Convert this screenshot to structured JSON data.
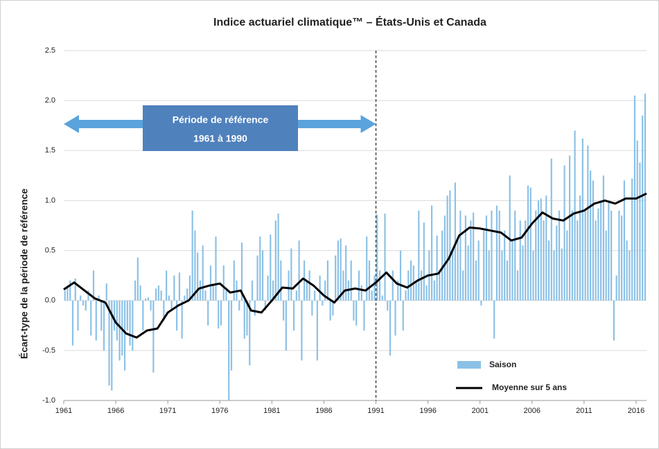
{
  "chart_data": {
    "type": "bar_line",
    "title": "Indice actuariel climatique™ – États-Unis et Canada",
    "y_label": "Écart-type de la période de référence",
    "annotation": {
      "text": [
        "Période de référence",
        "1961 à 1990"
      ],
      "from": 1961,
      "to": 1991
    },
    "reference_line": 1991,
    "xlim": [
      1961,
      2017
    ],
    "xticks": [
      1961,
      1966,
      1971,
      1976,
      1981,
      1986,
      1991,
      1996,
      2001,
      2006,
      2011,
      2016
    ],
    "ylim": [
      -1.0,
      2.5
    ],
    "yticks": [
      2.5,
      {
        "value": 2,
        "label": "2.0"
      },
      1.5,
      {
        "value": 1,
        "label": "1.0"
      },
      0.5,
      {
        "value": 0,
        "label": "0.0"
      },
      -0.5,
      {
        "value": -1,
        "label": "-1.0"
      }
    ],
    "grid": true,
    "legend": "bottom-right",
    "series": [
      {
        "name": "Saison",
        "color": "#8cc1e6",
        "kind": "bar",
        "x": [
          1961,
          1961.25,
          1961.5,
          1961.75,
          1962,
          1962.25,
          1962.5,
          1962.75,
          1963,
          1963.25,
          1963.5,
          1963.75,
          1964,
          1964.25,
          1964.5,
          1964.75,
          1965,
          1965.25,
          1965.5,
          1965.75,
          1966,
          1966.25,
          1966.5,
          1966.75,
          1967,
          1967.25,
          1967.5,
          1967.75,
          1968,
          1968.25,
          1968.5,
          1968.75,
          1969,
          1969.25,
          1969.5,
          1969.75,
          1970,
          1970.25,
          1970.5,
          1970.75,
          1971,
          1971.25,
          1971.5,
          1971.75,
          1972,
          1972.25,
          1972.5,
          1972.75,
          1973,
          1973.25,
          1973.5,
          1973.75,
          1974,
          1974.25,
          1974.5,
          1974.75,
          1975,
          1975.25,
          1975.5,
          1975.75,
          1976,
          1976.25,
          1976.5,
          1976.75,
          1977,
          1977.25,
          1977.5,
          1977.75,
          1978,
          1978.25,
          1978.5,
          1978.75,
          1979,
          1979.25,
          1979.5,
          1979.75,
          1980,
          1980.25,
          1980.5,
          1980.75,
          1981,
          1981.25,
          1981.5,
          1981.75,
          1982,
          1982.25,
          1982.5,
          1982.75,
          1983,
          1983.25,
          1983.5,
          1983.75,
          1984,
          1984.25,
          1984.5,
          1984.75,
          1985,
          1985.25,
          1985.5,
          1985.75,
          1986,
          1986.25,
          1986.5,
          1986.75,
          1987,
          1987.25,
          1987.5,
          1987.75,
          1988,
          1988.25,
          1988.5,
          1988.75,
          1989,
          1989.25,
          1989.5,
          1989.75,
          1990,
          1990.25,
          1990.5,
          1990.75,
          1991,
          1991.25,
          1991.5,
          1991.75,
          1992,
          1992.25,
          1992.5,
          1992.75,
          1993,
          1993.25,
          1993.5,
          1993.75,
          1994,
          1994.25,
          1994.5,
          1994.75,
          1995,
          1995.25,
          1995.5,
          1995.75,
          1996,
          1996.25,
          1996.5,
          1996.75,
          1997,
          1997.25,
          1997.5,
          1997.75,
          1998,
          1998.25,
          1998.5,
          1998.75,
          1999,
          1999.25,
          1999.5,
          1999.75,
          2000,
          2000.25,
          2000.5,
          2000.75,
          2001,
          2001.25,
          2001.5,
          2001.75,
          2002,
          2002.25,
          2002.5,
          2002.75,
          2003,
          2003.25,
          2003.5,
          2003.75,
          2004,
          2004.25,
          2004.5,
          2004.75,
          2005,
          2005.25,
          2005.5,
          2005.75,
          2006,
          2006.25,
          2006.5,
          2006.75,
          2007,
          2007.25,
          2007.5,
          2007.75,
          2008,
          2008.25,
          2008.5,
          2008.75,
          2009,
          2009.25,
          2009.5,
          2009.75,
          2010,
          2010.25,
          2010.5,
          2010.75,
          2011,
          2011.25,
          2011.5,
          2011.75,
          2012,
          2012.25,
          2012.5,
          2012.75,
          2013,
          2013.25,
          2013.5,
          2013.75,
          2014,
          2014.25,
          2014.5,
          2014.75,
          2015,
          2015.25,
          2015.5,
          2015.75,
          2016,
          2016.25,
          2016.5,
          2016.75
        ],
        "values": [
          0.1,
          0.15,
          0.2,
          -0.45,
          0.22,
          -0.3,
          0.05,
          -0.05,
          -0.1,
          0.1,
          -0.35,
          0.3,
          -0.4,
          0.05,
          -0.3,
          -0.5,
          0.17,
          -0.85,
          -0.9,
          -0.3,
          -0.4,
          -0.6,
          -0.55,
          -0.7,
          -0.3,
          -0.45,
          -0.5,
          0.2,
          0.43,
          0.15,
          -0.3,
          0.02,
          0.03,
          -0.1,
          -0.72,
          0.12,
          0.15,
          0.1,
          -0.2,
          0.3,
          0.05,
          -0.1,
          0.25,
          -0.3,
          0.28,
          -0.38,
          0.05,
          0.12,
          0.25,
          0.9,
          0.7,
          0.48,
          0.2,
          0.55,
          0.1,
          -0.25,
          0.35,
          0.15,
          0.64,
          -0.28,
          -0.25,
          0.35,
          0.1,
          -1.0,
          -0.7,
          0.4,
          0.2,
          -0.1,
          0.58,
          -0.38,
          -0.35,
          -0.65,
          0.2,
          -0.15,
          0.45,
          0.64,
          0.5,
          -0.1,
          0.25,
          0.66,
          0.2,
          0.8,
          0.87,
          0.4,
          -0.2,
          -0.5,
          0.3,
          0.52,
          -0.3,
          0.1,
          0.6,
          -0.6,
          0.4,
          0.2,
          0.3,
          -0.15,
          0.1,
          -0.6,
          0.25,
          -0.05,
          0.2,
          0.4,
          -0.2,
          -0.15,
          0.45,
          0.6,
          0.62,
          0.3,
          0.55,
          0.2,
          0.4,
          -0.2,
          -0.25,
          0.3,
          0.15,
          -0.3,
          0.64,
          0.4,
          0.1,
          0.25,
          0.86,
          0.3,
          0.05,
          0.87,
          -0.1,
          -0.55,
          0.3,
          -0.35,
          0.2,
          0.5,
          -0.3,
          0.1,
          0.3,
          0.4,
          0.35,
          0.2,
          0.9,
          0.3,
          0.78,
          0.15,
          0.5,
          0.95,
          0.2,
          0.65,
          0.3,
          0.7,
          0.85,
          1.05,
          1.1,
          0.5,
          1.18,
          0.6,
          0.9,
          0.3,
          0.85,
          0.55,
          0.8,
          0.88,
          0.4,
          0.6,
          -0.05,
          0.7,
          0.85,
          0.5,
          0.9,
          -0.38,
          0.95,
          0.9,
          0.5,
          0.7,
          0.4,
          1.25,
          0.6,
          0.9,
          0.3,
          0.8,
          0.55,
          0.8,
          1.15,
          1.13,
          0.5,
          0.9,
          1.0,
          1.02,
          0.8,
          1.05,
          0.6,
          1.42,
          0.5,
          0.75,
          0.9,
          0.52,
          1.35,
          0.7,
          1.45,
          0.9,
          1.7,
          0.8,
          1.05,
          1.62,
          0.9,
          1.55,
          1.3,
          1.2,
          0.8,
          0.92,
          1.0,
          1.25,
          0.7,
          1.0,
          0.9,
          -0.4,
          0.25,
          0.9,
          0.85,
          1.2,
          0.6,
          0.5,
          1.22,
          2.05,
          1.6,
          1.38,
          1.85,
          2.07
        ]
      },
      {
        "name": "Moyenne sur 5 ans",
        "color": "#000000",
        "kind": "line",
        "x": [
          1961,
          1962,
          1963,
          1964,
          1965,
          1966,
          1967,
          1968,
          1969,
          1970,
          1971,
          1972,
          1973,
          1974,
          1975,
          1976,
          1977,
          1978,
          1979,
          1980,
          1981,
          1982,
          1983,
          1984,
          1985,
          1986,
          1987,
          1988,
          1989,
          1990,
          1991,
          1992,
          1993,
          1994,
          1995,
          1996,
          1997,
          1998,
          1999,
          2000,
          2001,
          2002,
          2003,
          2004,
          2005,
          2006,
          2007,
          2008,
          2009,
          2010,
          2011,
          2012,
          2013,
          2014,
          2015,
          2016,
          2017
        ],
        "values": [
          0.11,
          0.18,
          0.1,
          0.02,
          -0.02,
          -0.22,
          -0.33,
          -0.37,
          -0.3,
          -0.28,
          -0.12,
          -0.05,
          0.0,
          0.12,
          0.15,
          0.17,
          0.08,
          0.1,
          -0.1,
          -0.12,
          0.0,
          0.13,
          0.12,
          0.22,
          0.15,
          0.05,
          -0.02,
          0.1,
          0.12,
          0.1,
          0.18,
          0.28,
          0.17,
          0.13,
          0.2,
          0.25,
          0.27,
          0.42,
          0.65,
          0.73,
          0.72,
          0.7,
          0.68,
          0.6,
          0.63,
          0.77,
          0.88,
          0.82,
          0.8,
          0.87,
          0.9,
          0.97,
          1.0,
          0.97,
          1.02,
          1.02,
          1.07
        ]
      }
    ]
  }
}
